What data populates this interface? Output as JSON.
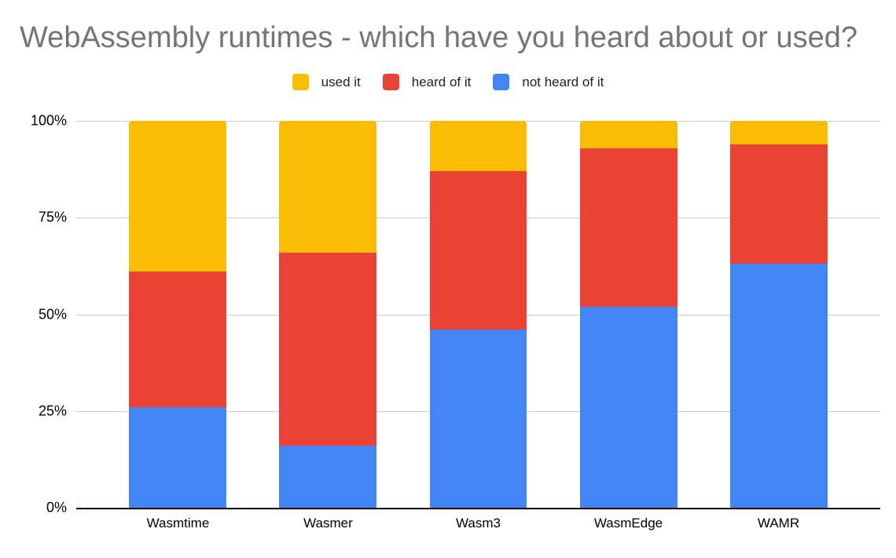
{
  "chart_data": {
    "type": "bar",
    "variant": "stacked-100-percent",
    "title": "WebAssembly runtimes - which have you heard about or used?",
    "categories": [
      "Wasmtime",
      "Wasmer",
      "Wasm3",
      "WasmEdge",
      "WAMR"
    ],
    "series": [
      {
        "name": "used it",
        "color": "#FBBC04",
        "values": [
          39,
          34,
          13,
          7,
          6
        ]
      },
      {
        "name": "heard of it",
        "color": "#EA4335",
        "values": [
          35,
          50,
          41,
          41,
          31
        ]
      },
      {
        "name": "not heard of it",
        "color": "#4285F4",
        "values": [
          26,
          16,
          46,
          52,
          63
        ]
      }
    ],
    "stack_order_bottom_to_top": [
      "not heard of it",
      "heard of it",
      "used it"
    ],
    "xlabel": "",
    "ylabel": "",
    "yticks": [
      "0%",
      "25%",
      "50%",
      "75%",
      "100%"
    ],
    "ylim": [
      0,
      100
    ],
    "legend_position": "top",
    "grid": "horizontal"
  },
  "colors": {
    "title": "#757575",
    "gridline": "#cccccc",
    "axis": "#000000",
    "background": "#ffffff",
    "tick_text": "#000000",
    "legend_text": "#222222"
  }
}
